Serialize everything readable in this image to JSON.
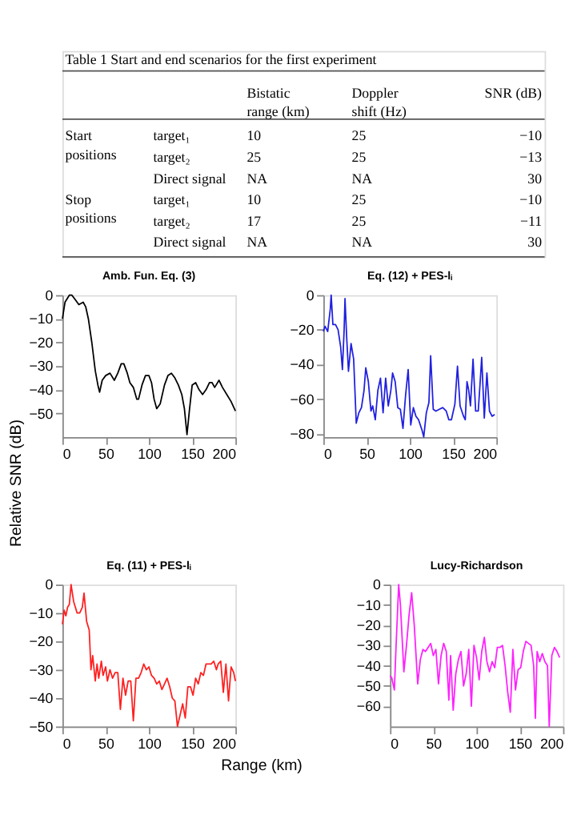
{
  "chart_data": [
    {
      "type": "other",
      "title": "Table 1 Start and end scenarios for the first experiment",
      "annotations": [
        "Bistatic range (km)",
        "Doppler shift (Hz)",
        "SNR (dB)",
        "Start positions",
        "target₁",
        "10",
        "25",
        "−10",
        "target₂",
        "25",
        "25",
        "−13",
        "Direct signal",
        "NA",
        "NA",
        "30",
        "Stop positions",
        "target₁",
        "10",
        "25",
        "−10",
        "target₂",
        "17",
        "25",
        "−11",
        "Direct signal",
        "NA",
        "NA",
        "30"
      ]
    },
    {
      "type": "line",
      "title": "Amb. Fun. Eq. (3)",
      "ylabel": "Relative SNR (dB)",
      "x": [
        0,
        3,
        8,
        11,
        15,
        19,
        24,
        27,
        30,
        34,
        38,
        41,
        43,
        46,
        50,
        55,
        60,
        64,
        68,
        71,
        75,
        78,
        82,
        86,
        88,
        92,
        96,
        100,
        103,
        106,
        109,
        113,
        118,
        122,
        126,
        130,
        134,
        138,
        141,
        144,
        147,
        150,
        154,
        158,
        162,
        166,
        170,
        173,
        176,
        181,
        185,
        190,
        195,
        200
      ],
      "series": [
        {
          "color": "#000000",
          "values": [
            -10,
            -3,
            0,
            0,
            -2,
            -4,
            -3,
            -5,
            -10,
            -20,
            -32,
            -38,
            -41,
            -36,
            -34,
            -33,
            -36,
            -33,
            -29,
            -29,
            -33,
            -37,
            -39,
            -44,
            -44,
            -38,
            -34,
            -34,
            -37,
            -44,
            -48,
            -46,
            -38,
            -34,
            -33,
            -35,
            -38,
            -42,
            -48,
            -59,
            -48,
            -38,
            -37,
            -40,
            -42,
            -40,
            -37,
            -37,
            -39,
            -36,
            -39,
            -42,
            -45,
            -49
          ]
        }
      ],
      "xlim": [
        0,
        200
      ],
      "xticks": [
        0,
        50,
        100,
        150,
        200
      ],
      "ylim": [
        -60,
        0
      ],
      "yticks": [
        -50,
        -40,
        -30,
        -20,
        -10,
        0
      ]
    },
    {
      "type": "line",
      "title": "Eq. (12) + PES-lᵢ",
      "x": [
        0,
        2,
        5,
        8,
        9,
        11,
        14,
        17,
        20,
        22,
        24,
        25,
        27,
        29,
        32,
        35,
        38,
        41,
        44,
        47,
        49,
        52,
        55,
        57,
        60,
        63,
        66,
        69,
        72,
        75,
        78,
        80,
        83,
        86,
        89,
        92,
        95,
        98,
        101,
        104,
        107,
        110,
        114,
        116,
        119,
        122,
        124,
        127,
        130,
        134,
        138,
        142,
        145,
        148,
        152,
        155,
        158,
        162,
        164,
        166,
        168,
        170,
        173,
        176,
        179,
        181,
        183,
        186,
        189,
        192,
        195,
        198
      ],
      "series": [
        {
          "color": "#2020e0",
          "values": [
            -21,
            -18,
            -21,
            -8,
            0,
            -17,
            -17,
            -20,
            -30,
            -43,
            -20,
            -2,
            -25,
            -44,
            -28,
            -37,
            -74,
            -68,
            -65,
            -55,
            -42,
            -50,
            -67,
            -64,
            -72,
            -55,
            -48,
            -68,
            -48,
            -64,
            -55,
            -45,
            -50,
            -65,
            -66,
            -77,
            -58,
            -43,
            -75,
            -65,
            -70,
            -72,
            -78,
            -82,
            -68,
            -62,
            -35,
            -66,
            -67,
            -66,
            -65,
            -67,
            -72,
            -72,
            -63,
            -41,
            -64,
            -70,
            -72,
            -50,
            -55,
            -64,
            -37,
            -67,
            -67,
            -52,
            -36,
            -71,
            -45,
            -67,
            -70,
            -69
          ]
        }
      ],
      "xlim": [
        0,
        200
      ],
      "xticks": [
        0,
        50,
        100,
        150,
        200
      ],
      "ylim": [
        -82,
        0
      ],
      "yticks": [
        -80,
        -60,
        -40,
        -20,
        0
      ]
    },
    {
      "type": "line",
      "title": "Eq. (11) + PES-lᵢ",
      "xlabel": "Range (km)",
      "x": [
        0,
        2,
        4,
        6,
        8,
        10,
        13,
        17,
        20,
        23,
        25,
        28,
        31,
        33,
        35,
        38,
        40,
        42,
        45,
        47,
        50,
        52,
        55,
        58,
        61,
        64,
        67,
        70,
        73,
        76,
        79,
        82,
        85,
        88,
        91,
        94,
        97,
        100,
        103,
        106,
        109,
        112,
        115,
        118,
        121,
        124,
        127,
        130,
        133,
        136,
        139,
        142,
        145,
        148,
        151,
        154,
        157,
        160,
        163,
        166,
        169,
        172,
        175,
        178,
        180,
        183,
        186,
        189,
        192,
        195,
        198,
        200
      ],
      "series": [
        {
          "color": "#ff2020",
          "values": [
            -14,
            -9,
            -11,
            -8,
            -7,
            0,
            -6,
            -10,
            -10,
            -8,
            -3,
            -13,
            -16,
            -30,
            -25,
            -34,
            -28,
            -33,
            -27,
            -32,
            -29,
            -34,
            -30,
            -33,
            -31,
            -31,
            -44,
            -33,
            -39,
            -34,
            -34,
            -48,
            -33,
            -33,
            -31,
            -28,
            -30,
            -29,
            -32,
            -33,
            -35,
            -34,
            -37,
            -35,
            -33,
            -36,
            -40,
            -41,
            -50,
            -46,
            -42,
            -47,
            -36,
            -36,
            -39,
            -33,
            -35,
            -31,
            -32,
            -28,
            -28,
            -28,
            -27,
            -30,
            -28,
            -27,
            -38,
            -28,
            -41,
            -29,
            -31,
            -34
          ]
        }
      ],
      "xlim": [
        0,
        200
      ],
      "xticks": [
        0,
        50,
        100,
        150,
        200
      ],
      "ylim": [
        -50,
        0
      ],
      "yticks": [
        -50,
        -40,
        -30,
        -20,
        -10,
        0
      ]
    },
    {
      "type": "line",
      "title": "Lucy-Richardson",
      "x": [
        0,
        2,
        5,
        7,
        10,
        12,
        16,
        19,
        22,
        25,
        28,
        32,
        35,
        38,
        41,
        44,
        47,
        50,
        53,
        56,
        59,
        62,
        65,
        68,
        70,
        73,
        76,
        79,
        82,
        85,
        88,
        91,
        94,
        97,
        100,
        103,
        106,
        109,
        112,
        115,
        118,
        121,
        124,
        127,
        130,
        133,
        136,
        139,
        142,
        145,
        148,
        151,
        154,
        157,
        160,
        163,
        166,
        168,
        170,
        173,
        176,
        179,
        182,
        184,
        187,
        190,
        193,
        196
      ],
      "series": [
        {
          "color": "#ff20ff",
          "values": [
            -45,
            -46,
            -52,
            -30,
            0,
            -10,
            -43,
            -30,
            -15,
            -4,
            -20,
            -49,
            -37,
            -32,
            -33,
            -31,
            -29,
            -35,
            -32,
            -49,
            -35,
            -29,
            -33,
            -57,
            -35,
            -62,
            -44,
            -37,
            -33,
            -50,
            -44,
            -32,
            -60,
            -30,
            -36,
            -47,
            -33,
            -26,
            -38,
            -43,
            -38,
            -41,
            -31,
            -31,
            -30,
            -40,
            -53,
            -63,
            -32,
            -52,
            -42,
            -41,
            -33,
            -28,
            -29,
            -30,
            -40,
            -66,
            -33,
            -38,
            -34,
            -38,
            -40,
            -70,
            -35,
            -31,
            -33,
            -36
          ]
        }
      ],
      "xlim": [
        0,
        200
      ],
      "xticks": [
        0,
        50,
        100,
        150,
        200
      ],
      "ylim": [
        -70,
        0
      ],
      "yticks": [
        -60,
        -50,
        -40,
        -30,
        -20,
        -10,
        0
      ]
    }
  ]
}
